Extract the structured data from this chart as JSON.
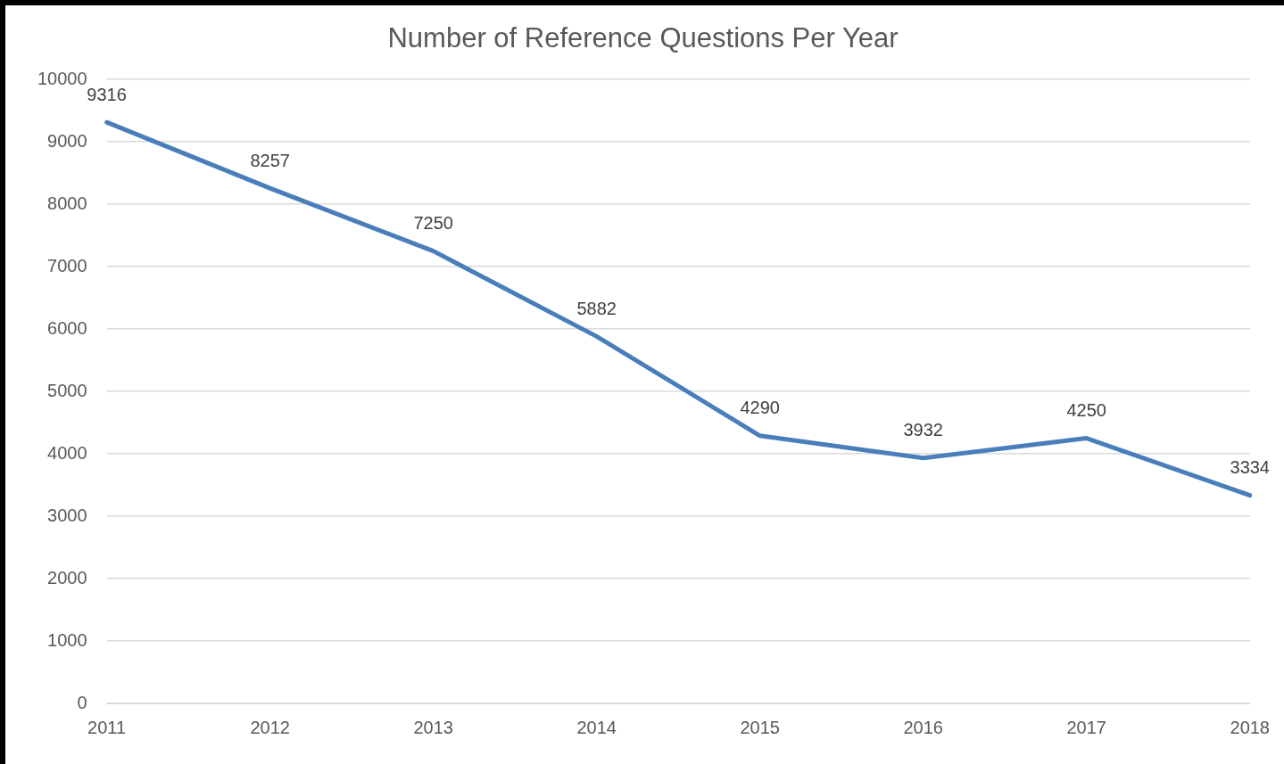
{
  "chart_data": {
    "type": "line",
    "title": "Number of Reference Questions Per Year",
    "categories": [
      "2011",
      "2012",
      "2013",
      "2014",
      "2015",
      "2016",
      "2017",
      "2018"
    ],
    "series": [
      {
        "color": "#4a7ebb",
        "values": [
          9316,
          8257,
          7250,
          5882,
          4290,
          3932,
          4250,
          3334
        ]
      }
    ],
    "ylim": [
      0,
      10000
    ],
    "yticks": [
      0,
      1000,
      2000,
      3000,
      4000,
      5000,
      6000,
      7000,
      8000,
      9000,
      10000
    ],
    "grid": "y",
    "legend": false,
    "marker": "none",
    "line_style": "solid",
    "data_labels": true
  }
}
